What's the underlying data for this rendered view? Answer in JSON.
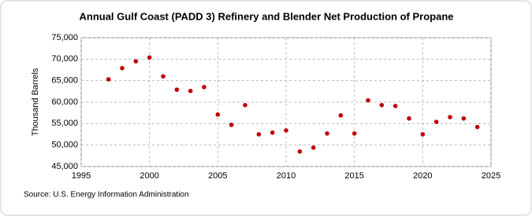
{
  "chart_data": {
    "type": "scatter",
    "title": "Annual Gulf Coast (PADD 3) Refinery and Blender Net Production of Propane",
    "y_label": "Thousand Barrels",
    "source": "Source: U.S. Energy Information Administration",
    "x": [
      1997,
      1998,
      1999,
      2000,
      2001,
      2002,
      2003,
      2004,
      2005,
      2006,
      2007,
      2008,
      2009,
      2010,
      2011,
      2012,
      2013,
      2014,
      2015,
      2016,
      2017,
      2018,
      2019,
      2020,
      2021,
      2022,
      2023,
      2024
    ],
    "series": [
      {
        "name": "Gulf Coast (PADD 3)",
        "color": "#c00000",
        "values": [
          65300,
          67900,
          69500,
          70400,
          66000,
          62900,
          62600,
          63500,
          57100,
          54700,
          59300,
          52500,
          52900,
          53400,
          48500,
          49400,
          52700,
          56900,
          52700,
          60400,
          59300,
          59100,
          56200,
          52500,
          55400,
          56500,
          56200,
          54200
        ]
      }
    ],
    "xlim": [
      1995,
      2025
    ],
    "xticks": [
      1995,
      2000,
      2005,
      2010,
      2015,
      2020,
      2025
    ],
    "ylim": [
      45000,
      75000
    ],
    "yticks": [
      {
        "value": 45000,
        "label": "45,000"
      },
      {
        "value": 50000,
        "label": "50,000"
      },
      {
        "value": 55000,
        "label": "55,000"
      },
      {
        "value": 60000,
        "label": "60,000"
      },
      {
        "value": 65000,
        "label": "65,000"
      },
      {
        "value": 70000,
        "label": "70,000"
      },
      {
        "value": 75000,
        "label": "75,000"
      }
    ],
    "grid": true
  }
}
